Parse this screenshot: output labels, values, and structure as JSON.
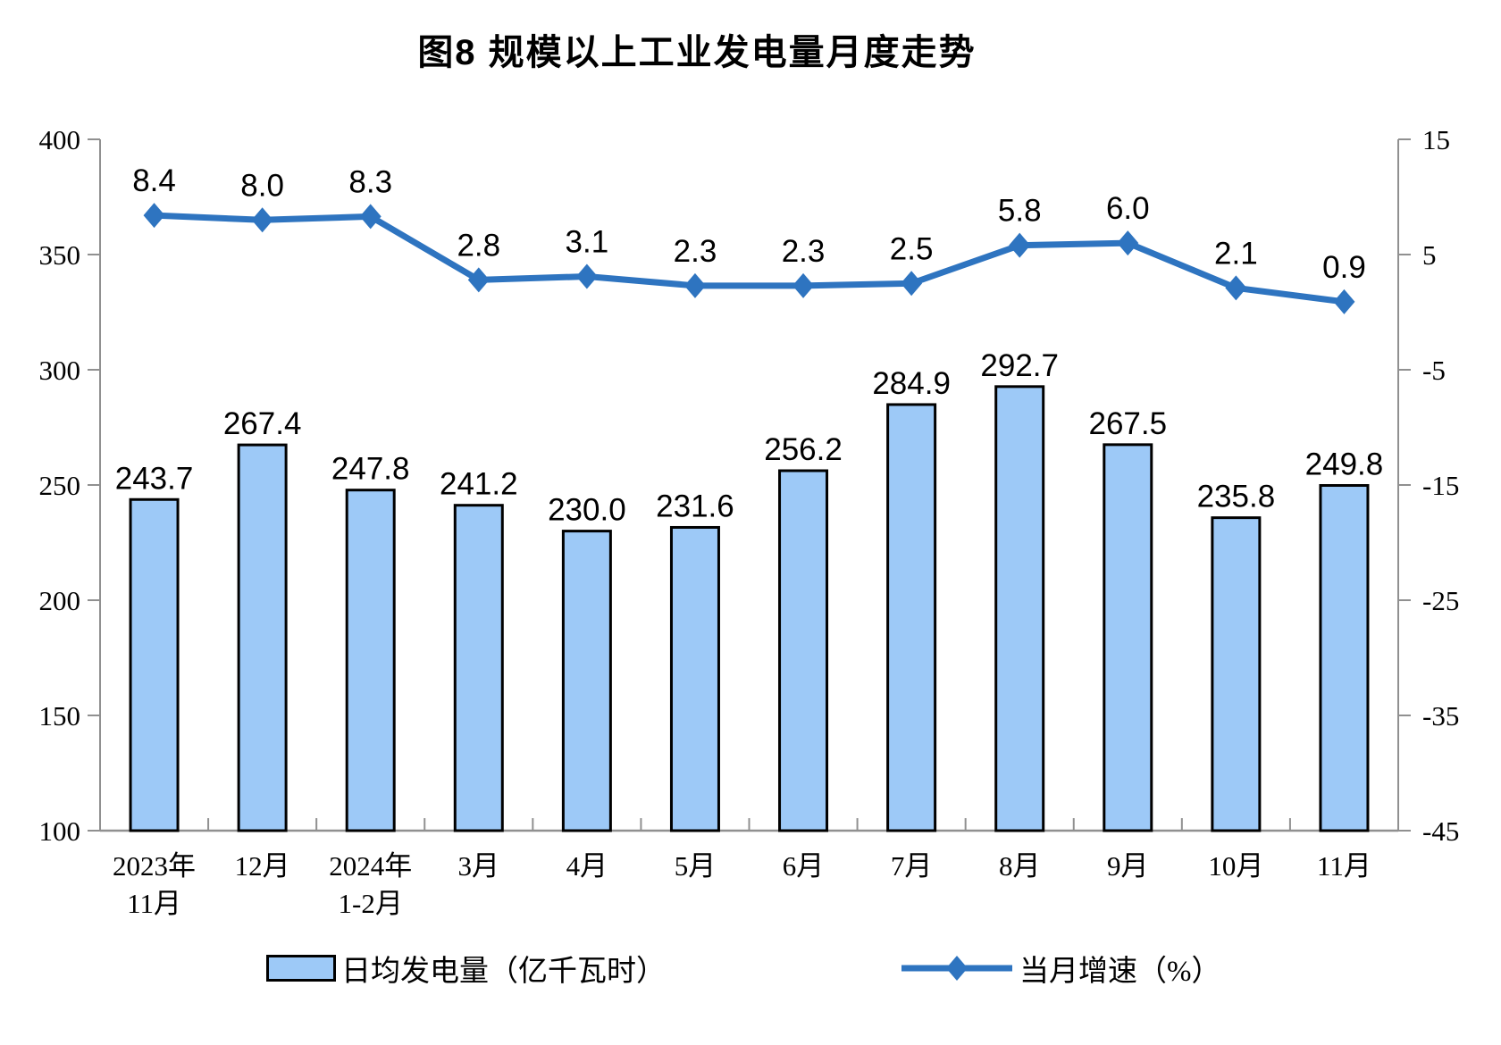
{
  "title": "图8 规模以上工业发电量月度走势",
  "chart_data": {
    "type": "combo-bar-line",
    "title": "图8 规模以上工业发电量月度走势",
    "categories": [
      {
        "lines": [
          "2023年",
          "11月"
        ]
      },
      {
        "lines": [
          "12月"
        ]
      },
      {
        "lines": [
          "2024年",
          "1-2月"
        ]
      },
      {
        "lines": [
          "3月"
        ]
      },
      {
        "lines": [
          "4月"
        ]
      },
      {
        "lines": [
          "5月"
        ]
      },
      {
        "lines": [
          "6月"
        ]
      },
      {
        "lines": [
          "7月"
        ]
      },
      {
        "lines": [
          "8月"
        ]
      },
      {
        "lines": [
          "9月"
        ]
      },
      {
        "lines": [
          "10月"
        ]
      },
      {
        "lines": [
          "11月"
        ]
      }
    ],
    "series": [
      {
        "name": "日均发电量（亿千瓦时）",
        "type": "bar",
        "axis": "left",
        "values": [
          243.7,
          267.4,
          247.8,
          241.2,
          230.0,
          231.6,
          256.2,
          284.9,
          292.7,
          267.5,
          235.8,
          249.8
        ],
        "fill_color": "#9DC9F7",
        "border_color": "#000000"
      },
      {
        "name": "当月增速（%）",
        "type": "line",
        "axis": "right",
        "values": [
          8.4,
          8.0,
          8.3,
          2.8,
          3.1,
          2.3,
          2.3,
          2.5,
          5.8,
          6.0,
          2.1,
          0.9
        ],
        "line_color": "#2E74C0",
        "marker": "diamond"
      }
    ],
    "left_axis": {
      "min": 100,
      "max": 400,
      "step": 50,
      "ticks": [
        400,
        350,
        300,
        250,
        200,
        150,
        100
      ]
    },
    "right_axis": {
      "min": -45,
      "max": 15,
      "step": 10,
      "ticks": [
        15,
        5,
        -5,
        -15,
        -25,
        -35,
        -45
      ]
    },
    "grid": false,
    "legend_position": "bottom",
    "axis_color": "#909090",
    "text_color": "#000000",
    "background_color": "#FFFFFF"
  }
}
